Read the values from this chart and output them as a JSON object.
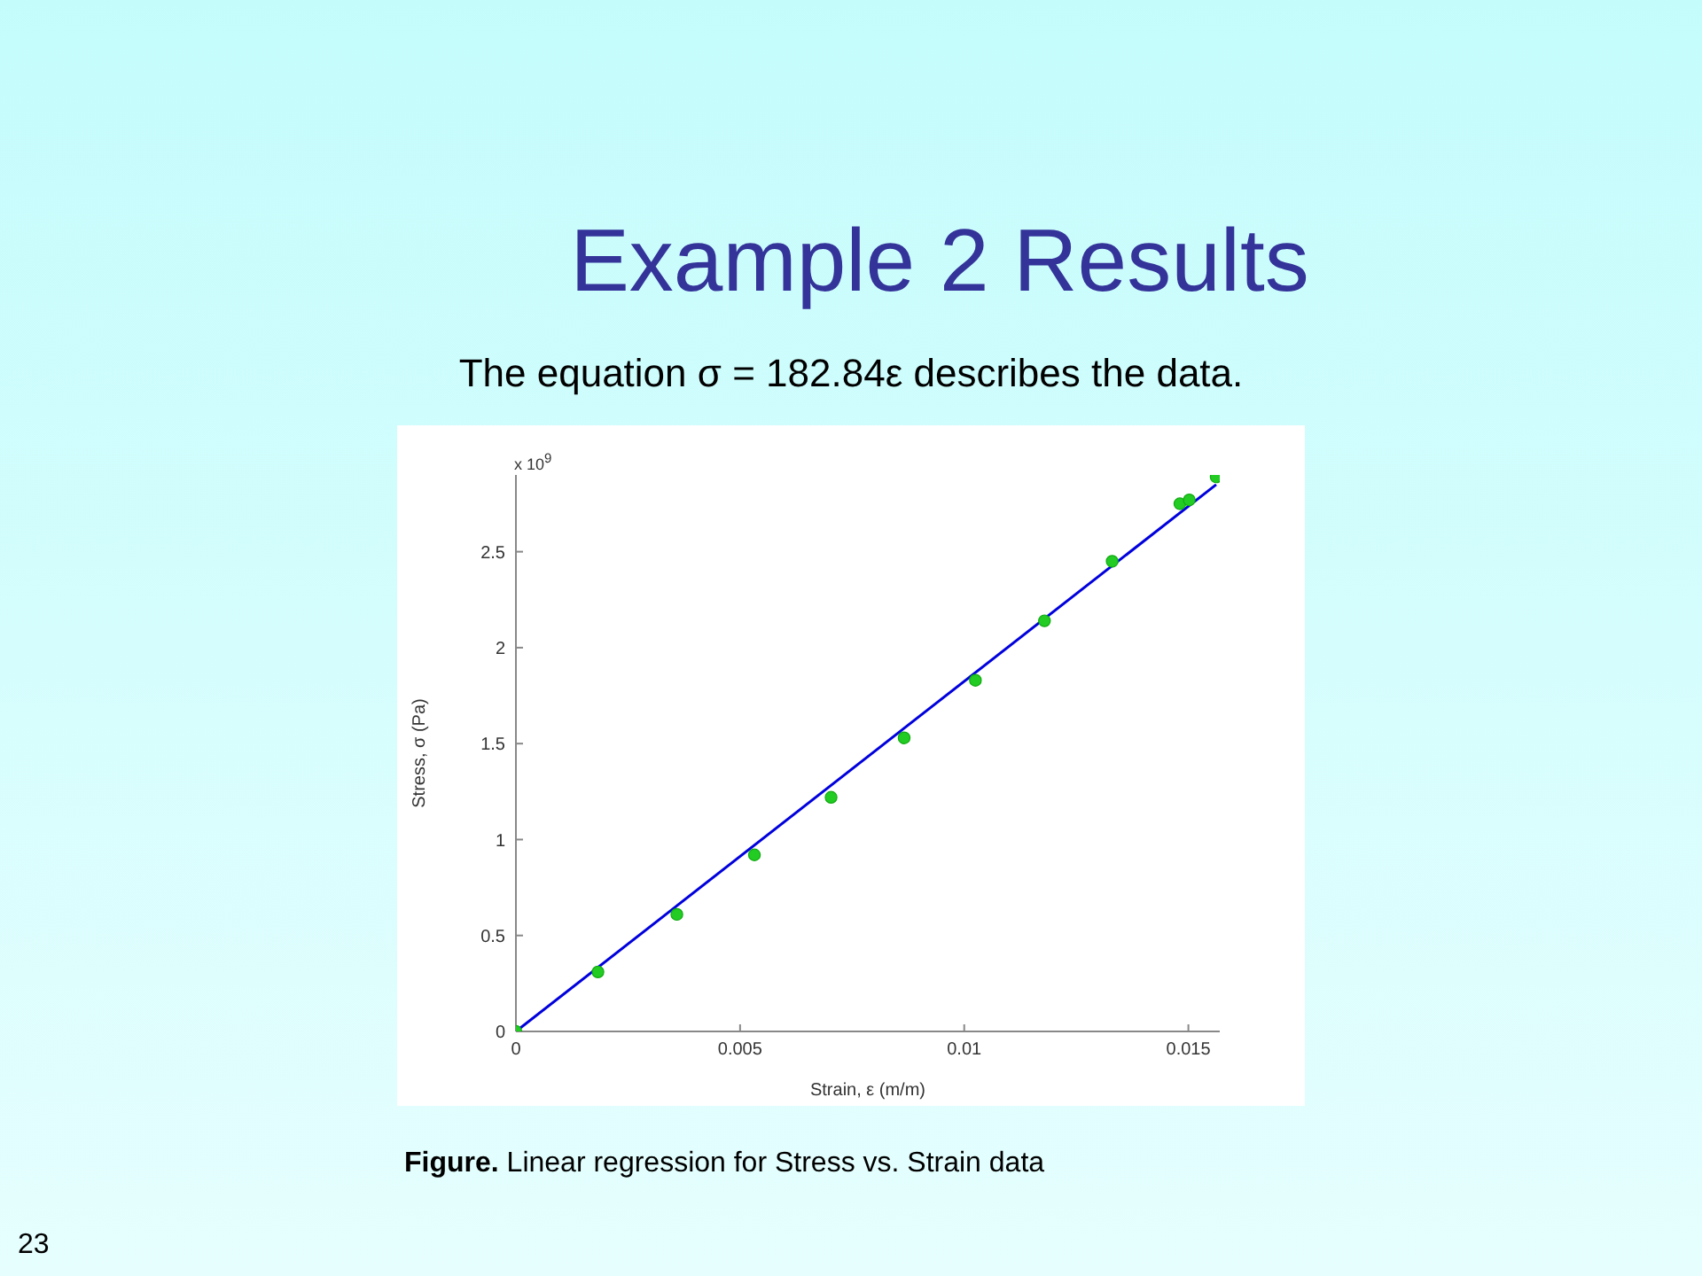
{
  "chart_data": {
    "type": "scatter",
    "title": "Example 2 Results",
    "subtitle": "The equation σ = 182.84ε describes the data.",
    "xlabel": "Strain, ε (m/m)",
    "ylabel": "Stress, σ (Pa)",
    "annotations": [
      "x 10$^{9}$",
      "Figure. Linear regression for Stress vs. Strain data",
      "23"
    ],
    "xlim": [
      0,
      0.0157
    ],
    "xticks": [
      0,
      0.005,
      0.01,
      0.015
    ],
    "ylim": [
      0,
      2.9
    ],
    "yticks": [
      0,
      0.5,
      1,
      1.5,
      2,
      2.5
    ],
    "series": [
      {
        "marker": "circle",
        "color": "#22cc22",
        "x": [
          0,
          0.00183,
          0.00359,
          0.00532,
          0.00703,
          0.00866,
          0.01025,
          0.01179,
          0.0133,
          0.01481,
          0.01502,
          0.01562
        ],
        "values": [
          0,
          0.31,
          0.61,
          0.92,
          1.22,
          1.53,
          1.83,
          2.14,
          2.45,
          2.75,
          2.77,
          2.89
        ]
      },
      {
        "type": "line",
        "color": "#0000dd",
        "x": [
          0,
          0.01562
        ],
        "values": [
          0,
          2.85
        ]
      }
    ]
  }
}
